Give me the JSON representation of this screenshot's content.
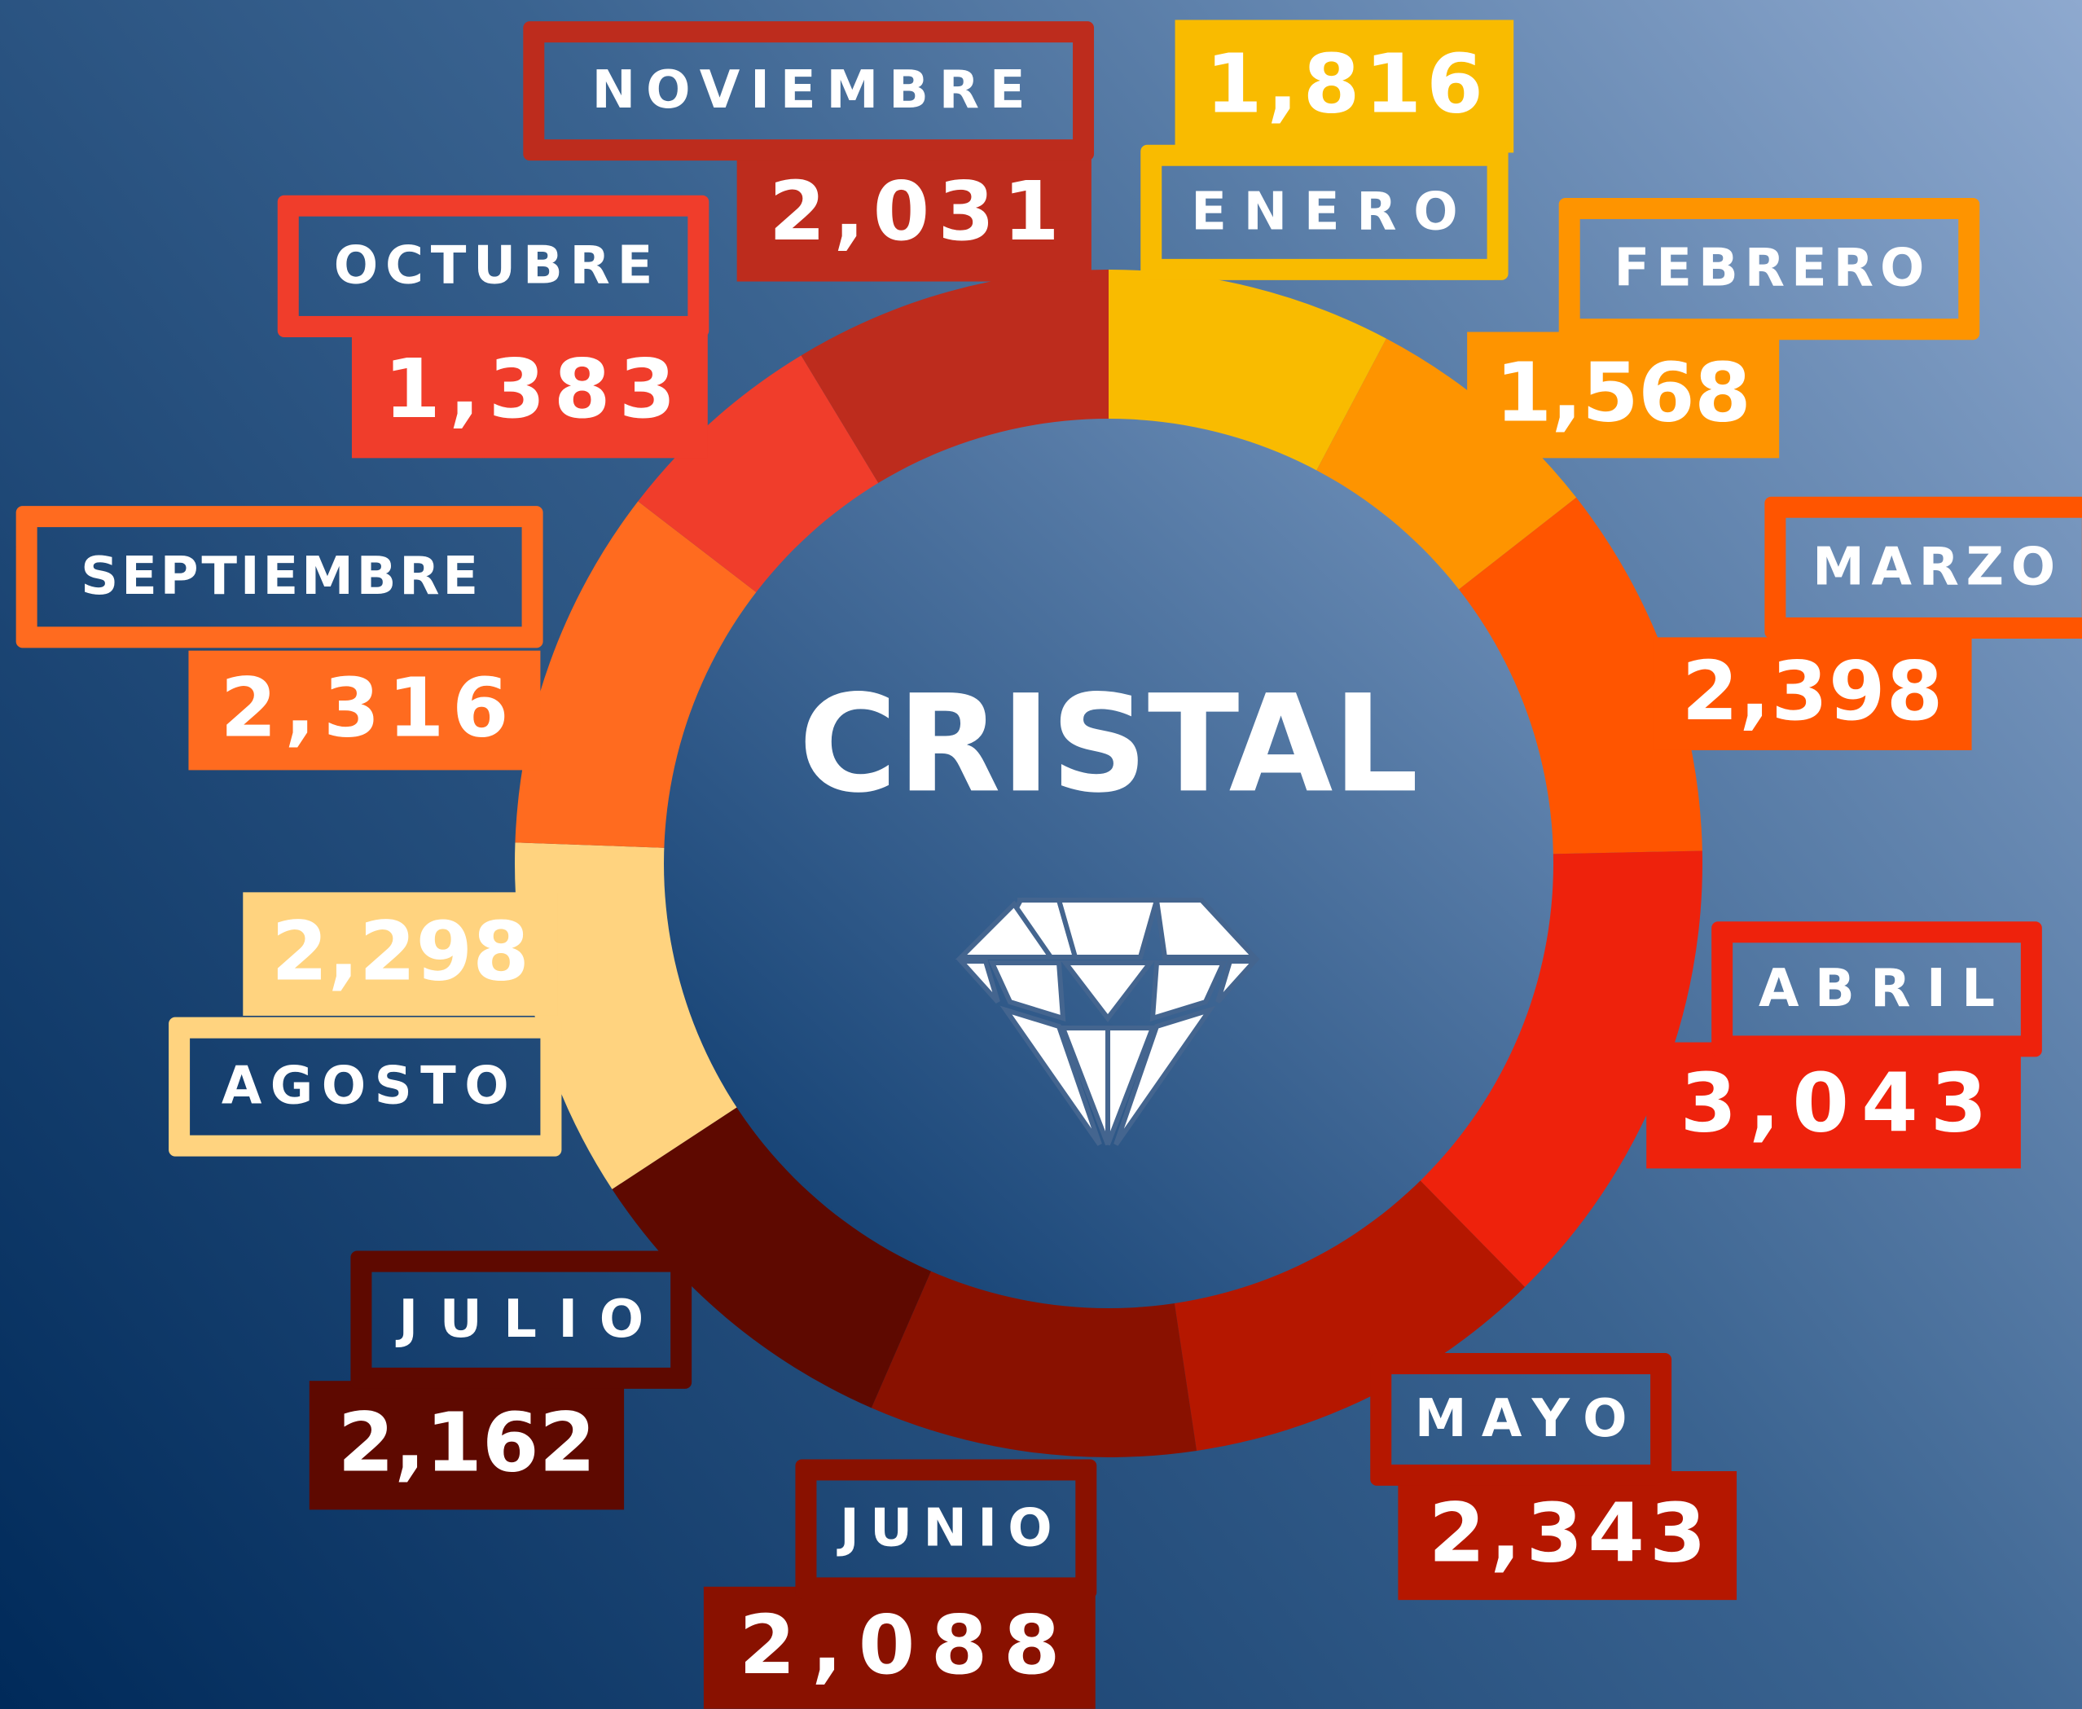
{
  "chart_data": {
    "type": "donut",
    "title": "CRISTAL",
    "categories": [
      "ENERO",
      "FEBRERO",
      "MARZO",
      "ABRIL",
      "MAYO",
      "JUNIO",
      "JULIO",
      "AGOSTO",
      "SEPTIEMBRE",
      "OCTUBRE",
      "NOVIEMBRE"
    ],
    "values": [
      1816,
      1568,
      2398,
      3043,
      2343,
      2088,
      2162,
      2298,
      2316,
      1383,
      2031
    ],
    "value_labels": [
      "1,816",
      "1,568",
      "2,398",
      "3,043",
      "2,343",
      "2,088",
      "2,162",
      "2,298",
      "2,316",
      "1,383",
      "2,031"
    ],
    "colors": [
      "#f9bb00",
      "#fe9400",
      "#ff5500",
      "#ee220c",
      "#b51700",
      "#891100",
      "#5e0900",
      "#ffd37f",
      "#ff6b1f",
      "#f03d2b",
      "#bd2c1d"
    ]
  }
}
